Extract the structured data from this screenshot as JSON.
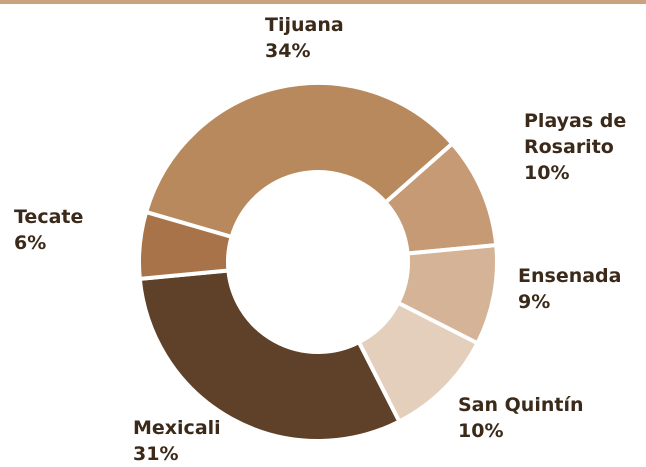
{
  "chart_data": {
    "type": "pie",
    "categories": [
      "Tijuana",
      "Playas de Rosarito",
      "Ensenada",
      "San Quintín",
      "Mexicali",
      "Tecate"
    ],
    "values": [
      34,
      10,
      9,
      10,
      31,
      6
    ],
    "value_labels": [
      "34%",
      "10%",
      "9%",
      "10%",
      "31%",
      "6%"
    ],
    "colors": [
      "#b8895d",
      "#c69a74",
      "#d4b397",
      "#e4cfbc",
      "#5e4128",
      "#a9734a"
    ]
  }
}
